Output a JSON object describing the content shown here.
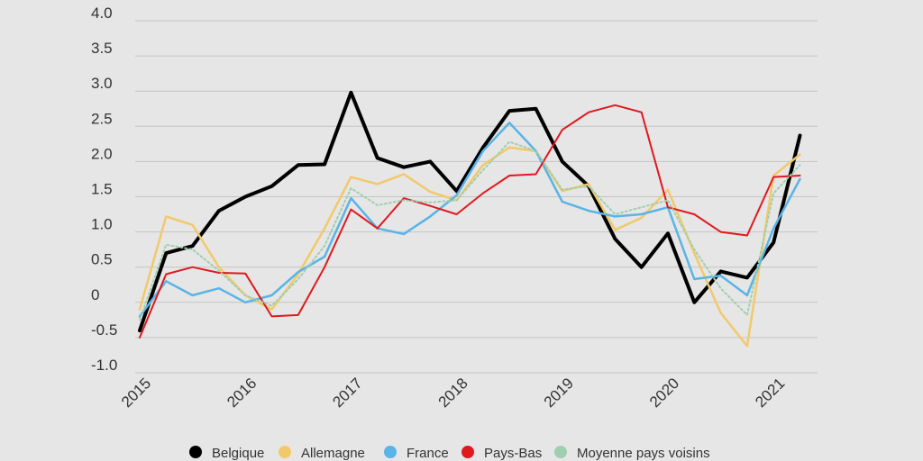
{
  "chart_data": {
    "type": "line",
    "title": "",
    "xlabel": "",
    "ylabel": "",
    "ylim": [
      -1.0,
      4.0
    ],
    "yticks": [
      {
        "value": 4.0,
        "label": "4.0"
      },
      {
        "value": 3.5,
        "label": "3.5"
      },
      {
        "value": 3.0,
        "label": "3.0"
      },
      {
        "value": 2.5,
        "label": "2.5"
      },
      {
        "value": 2.0,
        "label": "2.0"
      },
      {
        "value": 1.5,
        "label": "1.5"
      },
      {
        "value": 1.0,
        "label": "1.0"
      },
      {
        "value": 0.5,
        "label": "0.5"
      },
      {
        "value": 0.0,
        "label": "0"
      },
      {
        "value": -0.5,
        "label": "-0.5"
      },
      {
        "value": -1.0,
        "label": "-1.0"
      }
    ],
    "xticks": [
      {
        "pos": 0,
        "label": "2015"
      },
      {
        "pos": 4,
        "label": "2016"
      },
      {
        "pos": 8,
        "label": "2017"
      },
      {
        "pos": 12,
        "label": "2018"
      },
      {
        "pos": 16,
        "label": "2019"
      },
      {
        "pos": 20,
        "label": "2020"
      },
      {
        "pos": 24,
        "label": "2021"
      }
    ],
    "x": [
      "2015 Q1",
      "2015 Q2",
      "2015 Q3",
      "2015 Q4",
      "2016 Q1",
      "2016 Q2",
      "2016 Q3",
      "2016 Q4",
      "2017 Q1",
      "2017 Q2",
      "2017 Q3",
      "2017 Q4",
      "2018 Q1",
      "2018 Q2",
      "2018 Q3",
      "2018 Q4",
      "2019 Q1",
      "2019 Q2",
      "2019 Q3",
      "2019 Q4",
      "2020 Q1",
      "2020 Q2",
      "2020 Q3",
      "2020 Q4",
      "2021 Q1",
      "2021 Q2"
    ],
    "grid": true,
    "legend_position": "bottom",
    "series": [
      {
        "name": "Belgique",
        "color": "#000000",
        "style": "solid",
        "width": 4,
        "values": [
          -0.4,
          0.7,
          0.8,
          1.3,
          1.5,
          1.65,
          1.95,
          1.96,
          2.98,
          2.05,
          1.92,
          2.0,
          1.58,
          2.2,
          2.72,
          2.75,
          2.0,
          1.65,
          0.9,
          0.5,
          0.98,
          0.0,
          0.44,
          0.35,
          0.85,
          2.37
        ]
      },
      {
        "name": "Allemagne",
        "color": "#f2c96a",
        "style": "solid",
        "width": 2.5,
        "values": [
          -0.1,
          1.22,
          1.1,
          0.5,
          0.1,
          -0.1,
          0.4,
          1.05,
          1.78,
          1.68,
          1.82,
          1.57,
          1.45,
          1.95,
          2.2,
          2.15,
          1.58,
          1.68,
          1.03,
          1.2,
          1.6,
          0.7,
          -0.15,
          -0.62,
          1.8,
          2.1
        ]
      },
      {
        "name": "France",
        "color": "#5ab4e6",
        "style": "solid",
        "width": 2.5,
        "values": [
          -0.2,
          0.3,
          0.1,
          0.2,
          0.0,
          0.1,
          0.43,
          0.65,
          1.48,
          1.05,
          0.97,
          1.22,
          1.52,
          2.15,
          2.55,
          2.15,
          1.43,
          1.3,
          1.22,
          1.25,
          1.35,
          0.33,
          0.38,
          0.1,
          1.05,
          1.75
        ]
      },
      {
        "name": "Pays-Bas",
        "color": "#e0191e",
        "style": "solid",
        "width": 2,
        "values": [
          -0.5,
          0.4,
          0.5,
          0.42,
          0.41,
          -0.2,
          -0.18,
          0.5,
          1.32,
          1.05,
          1.48,
          1.37,
          1.25,
          1.55,
          1.8,
          1.82,
          2.45,
          2.7,
          2.8,
          2.7,
          1.35,
          1.25,
          1.0,
          0.95,
          1.78,
          1.8
        ]
      },
      {
        "name": "Moyenne pays voisins",
        "color": "#9fcfb0",
        "style": "dotted",
        "width": 2,
        "values": [
          -0.25,
          0.82,
          0.75,
          0.45,
          0.1,
          -0.05,
          0.33,
          0.8,
          1.62,
          1.38,
          1.45,
          1.42,
          1.45,
          1.88,
          2.28,
          2.15,
          1.6,
          1.65,
          1.25,
          1.35,
          1.45,
          0.75,
          0.2,
          -0.18,
          1.55,
          1.95
        ]
      }
    ]
  }
}
